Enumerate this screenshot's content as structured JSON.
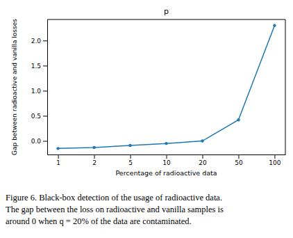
{
  "chart_data": {
    "type": "line",
    "title": "p",
    "x_label": "Percentage of radioactive data",
    "y_label": "Gap between radioactive and vanilla losses",
    "categories": [
      "1",
      "2",
      "5",
      "10",
      "20",
      "50",
      "100"
    ],
    "values": [
      -0.15,
      -0.13,
      -0.09,
      -0.05,
      0.0,
      0.42,
      2.3
    ],
    "color": "#1f77b4",
    "marker": "circle",
    "line_style": "solid",
    "grid": false,
    "ylim": [
      -0.27,
      2.42
    ],
    "yticks": [
      {
        "value": 0,
        "label": "0.0"
      },
      {
        "value": 0.5,
        "label": "0.5"
      },
      {
        "value": 1,
        "label": "1.0"
      },
      {
        "value": 1.5,
        "label": "1.5"
      },
      {
        "value": 2,
        "label": "2.0"
      }
    ],
    "caption": [
      "Figure 6. Black-box detection of the usage of radioactive data.",
      "The gap between the loss on radioactive and vanilla samples is",
      "around 0 when q = 20% of the data are contaminated."
    ]
  }
}
